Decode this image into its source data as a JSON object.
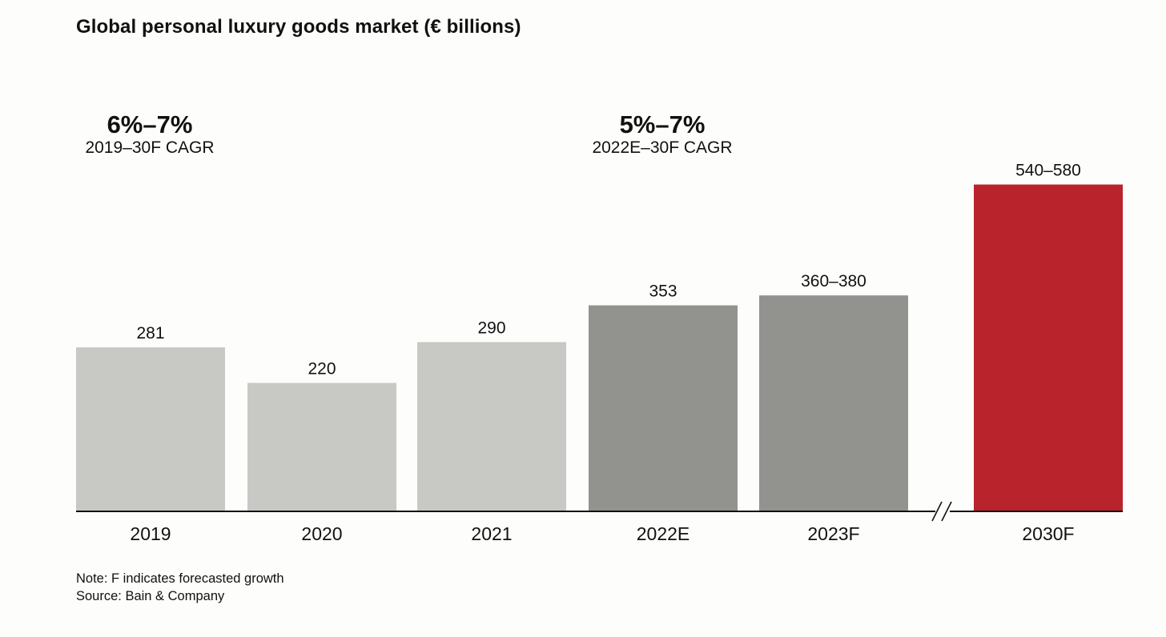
{
  "chart_data": {
    "type": "bar",
    "title": "Global personal luxury goods market (€ billions)",
    "categories": [
      "2019",
      "2020",
      "2021",
      "2022E",
      "2023F",
      "2030F"
    ],
    "values": [
      281,
      220,
      290,
      353,
      370,
      560
    ],
    "value_labels": [
      "281",
      "220",
      "290",
      "353",
      "360–380",
      "540–580"
    ],
    "bar_colors": [
      "#c8c8c5",
      "#c8c8c5",
      "#c8c8c5",
      "#92928e",
      "#92928e",
      "#b9232b"
    ],
    "xlabel": "",
    "ylabel": "",
    "ylim": [
      0,
      580
    ],
    "axis_break_before": "2030F",
    "grid": false,
    "legend": "none",
    "annotations": [
      {
        "value": "6%–7%",
        "label": "2019–30F CAGR"
      },
      {
        "value": "5%–7%",
        "label": "2022E–30F CAGR"
      }
    ]
  },
  "footer": {
    "note": "Note: F indicates forecasted growth",
    "source": "Source: Bain & Company"
  }
}
